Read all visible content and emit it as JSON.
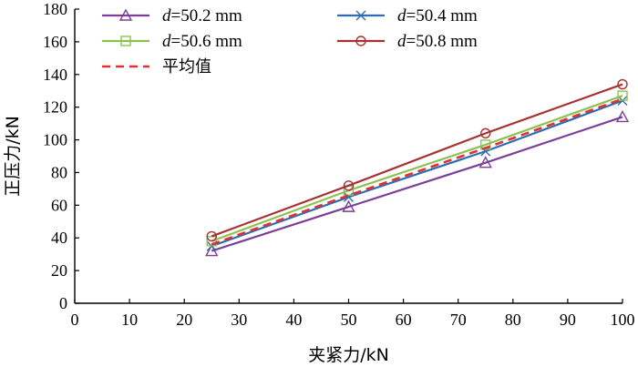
{
  "chart_data": {
    "type": "line",
    "title": "",
    "xlabel": "夹紧力/kN",
    "ylabel": "正压力/kN",
    "xlim": [
      0,
      100
    ],
    "ylim": [
      0,
      180
    ],
    "xticks": [
      0,
      10,
      20,
      30,
      40,
      50,
      60,
      70,
      80,
      90,
      100
    ],
    "yticks": [
      0,
      20,
      40,
      60,
      80,
      100,
      120,
      140,
      160,
      180
    ],
    "x": [
      25,
      50,
      75,
      100
    ],
    "grid": false,
    "legend_position": "top-left",
    "series": [
      {
        "name": "d=50.2 mm",
        "var": "d",
        "rest": "=50.2 mm",
        "color": "#7B3F98",
        "marker": "triangle",
        "dash": "solid",
        "values": [
          32,
          59,
          86,
          114
        ]
      },
      {
        "name": "d=50.4 mm",
        "var": "d",
        "rest": "=50.4 mm",
        "color": "#2E6DB4",
        "marker": "x",
        "dash": "solid",
        "values": [
          35,
          65,
          93,
          124
        ]
      },
      {
        "name": "d=50.6 mm",
        "var": "d",
        "rest": "=50.6 mm",
        "color": "#8CC152",
        "marker": "square",
        "dash": "solid",
        "values": [
          38,
          69,
          97,
          127
        ]
      },
      {
        "name": "d=50.8 mm",
        "var": "d",
        "rest": "=50.8 mm",
        "color": "#A83232",
        "marker": "circle",
        "dash": "solid",
        "values": [
          41,
          72,
          104,
          134
        ]
      },
      {
        "name": "平均值",
        "var": "",
        "rest": "平均值",
        "color": "#E03030",
        "marker": "none",
        "dash": "dashed",
        "values": [
          36,
          66,
          95,
          125
        ]
      }
    ]
  }
}
